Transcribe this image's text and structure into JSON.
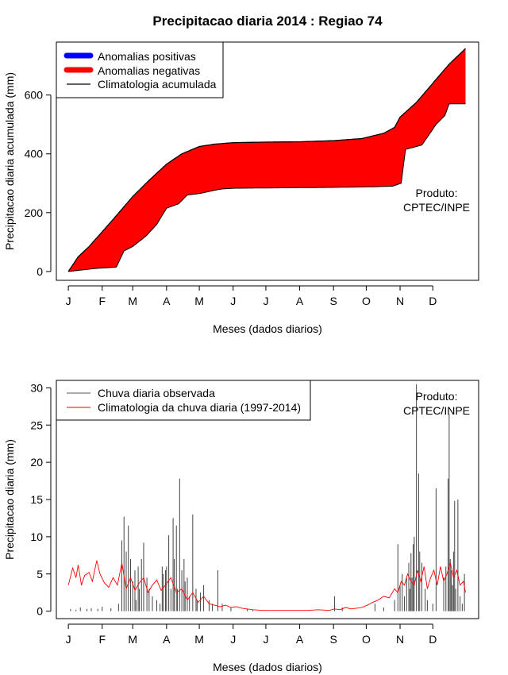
{
  "page_title": "Precipitacao diaria 2014 : Regiao 74",
  "chart_data": [
    {
      "type": "area",
      "title": "Precipitacao diaria 2014 : Regiao 74",
      "xlabel": "Meses (dados diarios)",
      "ylabel": "Precipitacao diaria acumulada (mm)",
      "ylim": [
        -30,
        780
      ],
      "yticks": [
        0,
        200,
        400,
        600
      ],
      "months": [
        "J",
        "F",
        "M",
        "A",
        "M",
        "J",
        "J",
        "A",
        "S",
        "O",
        "N",
        "D"
      ],
      "month_start_days": [
        1,
        32,
        60,
        91,
        121,
        152,
        182,
        213,
        244,
        274,
        305,
        335
      ],
      "xlim": [
        -10,
        377
      ],
      "legend": {
        "placement": "top-left",
        "items": [
          {
            "label": "Anomalias positivas",
            "color": "#0000ff"
          },
          {
            "label": "Anomalias negativas",
            "color": "#ff0000"
          },
          {
            "label": "Climatologia acumulada",
            "color": "#000000"
          }
        ]
      },
      "annotation": [
        "Produto:",
        "CPTEC/INPE"
      ],
      "climatology_accumulated": {
        "days": [
          1,
          10,
          20,
          32,
          45,
          60,
          75,
          91,
          105,
          121,
          135,
          152,
          182,
          213,
          244,
          270,
          290,
          300,
          305,
          320,
          335,
          350,
          365
        ],
        "values": [
          0,
          50,
          85,
          135,
          190,
          255,
          310,
          365,
          400,
          425,
          433,
          438,
          440,
          441,
          445,
          452,
          470,
          490,
          525,
          575,
          640,
          705,
          758
        ]
      },
      "observed_accumulated": {
        "days": [
          1,
          25,
          45,
          52,
          60,
          72,
          82,
          91,
          102,
          110,
          121,
          140,
          152,
          182,
          213,
          244,
          280,
          298,
          306,
          310,
          325,
          338,
          346,
          350,
          365
        ],
        "values": [
          0,
          10,
          15,
          70,
          85,
          120,
          160,
          215,
          230,
          260,
          265,
          280,
          283,
          284,
          285,
          286,
          288,
          290,
          300,
          415,
          430,
          500,
          530,
          570,
          570
        ]
      }
    },
    {
      "type": "bar",
      "xlabel": "Meses (dados diarios)",
      "ylabel": "Precipitacao diaria (mm)",
      "ylim": [
        -1,
        31
      ],
      "yticks": [
        0,
        5,
        10,
        15,
        20,
        25,
        30
      ],
      "months": [
        "J",
        "F",
        "M",
        "A",
        "M",
        "J",
        "J",
        "A",
        "S",
        "O",
        "N",
        "D"
      ],
      "month_start_days": [
        1,
        32,
        60,
        91,
        121,
        152,
        182,
        213,
        244,
        274,
        305,
        335
      ],
      "xlim": [
        -10,
        377
      ],
      "legend": {
        "placement": "top-left",
        "items": [
          {
            "label": "Chuva diaria observada",
            "color": "#555555"
          },
          {
            "label": "Climatologia da chuva diaria (1997-2014)",
            "color": "#ff0000"
          }
        ]
      },
      "annotation": [
        "Produto:",
        "CPTEC/INPE"
      ],
      "observed_daily": {
        "days": [
          3,
          8,
          12,
          18,
          22,
          28,
          32,
          40,
          47,
          50,
          52,
          54,
          56,
          58,
          60,
          62,
          63,
          65,
          66,
          68,
          70,
          73,
          75,
          78,
          82,
          85,
          87,
          88,
          90,
          91,
          93,
          95,
          97,
          98,
          100,
          101,
          103,
          105,
          107,
          108,
          110,
          112,
          115,
          118,
          119,
          122,
          125,
          130,
          133,
          138,
          142,
          150,
          165,
          170,
          245,
          252,
          282,
          290,
          300,
          303,
          305,
          307,
          309,
          311,
          313,
          314,
          315,
          316,
          317,
          318,
          320,
          322,
          323,
          325,
          328,
          330,
          335,
          338,
          345,
          347,
          349,
          350,
          351,
          352,
          353,
          354,
          355,
          356,
          358,
          360,
          362,
          364
        ],
        "values": [
          0.3,
          0.2,
          0.5,
          0.3,
          0.4,
          0.3,
          0.6,
          0.4,
          1.0,
          9.5,
          12.7,
          8.0,
          11.5,
          7.0,
          4.0,
          5.5,
          1.5,
          6.0,
          3.0,
          7.0,
          9.2,
          4.5,
          3.0,
          2.0,
          1.5,
          1.0,
          6.0,
          5.0,
          5.5,
          6.0,
          10.2,
          3.0,
          12.5,
          7.0,
          11.5,
          3.0,
          17.8,
          5.5,
          7.0,
          4.0,
          4.5,
          2.0,
          13.0,
          3.0,
          1.5,
          2.5,
          3.5,
          1.5,
          1.0,
          5.5,
          1.0,
          0.5,
          0.3,
          0.2,
          2.0,
          0.5,
          1.0,
          0.5,
          1.5,
          9.0,
          3.5,
          5.0,
          2.0,
          4.5,
          6.5,
          3.0,
          7.8,
          4.5,
          9.0,
          10.0,
          30.5,
          18.5,
          8.0,
          6.5,
          3.0,
          1.5,
          1.0,
          16.5,
          4.5,
          6.0,
          17.8,
          26.5,
          7.0,
          5.5,
          3.5,
          8.0,
          14.8,
          3.0,
          15.0,
          2.0,
          1.0,
          5.0
        ]
      },
      "climatology_daily": {
        "days": [
          1,
          5,
          8,
          10,
          13,
          16,
          20,
          23,
          27,
          30,
          34,
          38,
          42,
          46,
          50,
          54,
          58,
          62,
          66,
          70,
          74,
          78,
          82,
          86,
          90,
          95,
          100,
          105,
          110,
          115,
          120,
          125,
          130,
          135,
          140,
          145,
          150,
          155,
          160,
          170,
          180,
          200,
          220,
          230,
          240,
          245,
          250,
          255,
          260,
          270,
          275,
          280,
          285,
          290,
          295,
          300,
          303,
          306,
          309,
          312,
          315,
          318,
          321,
          324,
          327,
          330,
          333,
          336,
          339,
          342,
          345,
          348,
          351,
          354,
          357,
          360,
          363,
          365
        ],
        "values": [
          3.5,
          5.8,
          4.5,
          6.2,
          3.5,
          4.8,
          5.2,
          4.0,
          6.8,
          5.0,
          3.8,
          3.2,
          4.5,
          3.5,
          6.5,
          3.0,
          4.5,
          2.8,
          3.8,
          4.5,
          2.5,
          3.5,
          4.2,
          2.8,
          3.5,
          4.5,
          2.5,
          3.0,
          1.5,
          2.5,
          1.2,
          2.0,
          1.0,
          0.8,
          0.6,
          0.8,
          0.5,
          0.6,
          0.4,
          0.2,
          0.1,
          0.1,
          0.1,
          0.2,
          0.1,
          0.3,
          0.2,
          0.5,
          0.3,
          0.5,
          0.8,
          1.2,
          1.5,
          2.0,
          1.8,
          3.0,
          2.5,
          4.0,
          3.5,
          5.0,
          4.0,
          3.5,
          5.5,
          4.0,
          6.0,
          3.0,
          4.5,
          5.5,
          3.5,
          6.0,
          4.0,
          5.0,
          6.5,
          4.5,
          5.5,
          3.5,
          4.0,
          2.5
        ]
      }
    }
  ]
}
